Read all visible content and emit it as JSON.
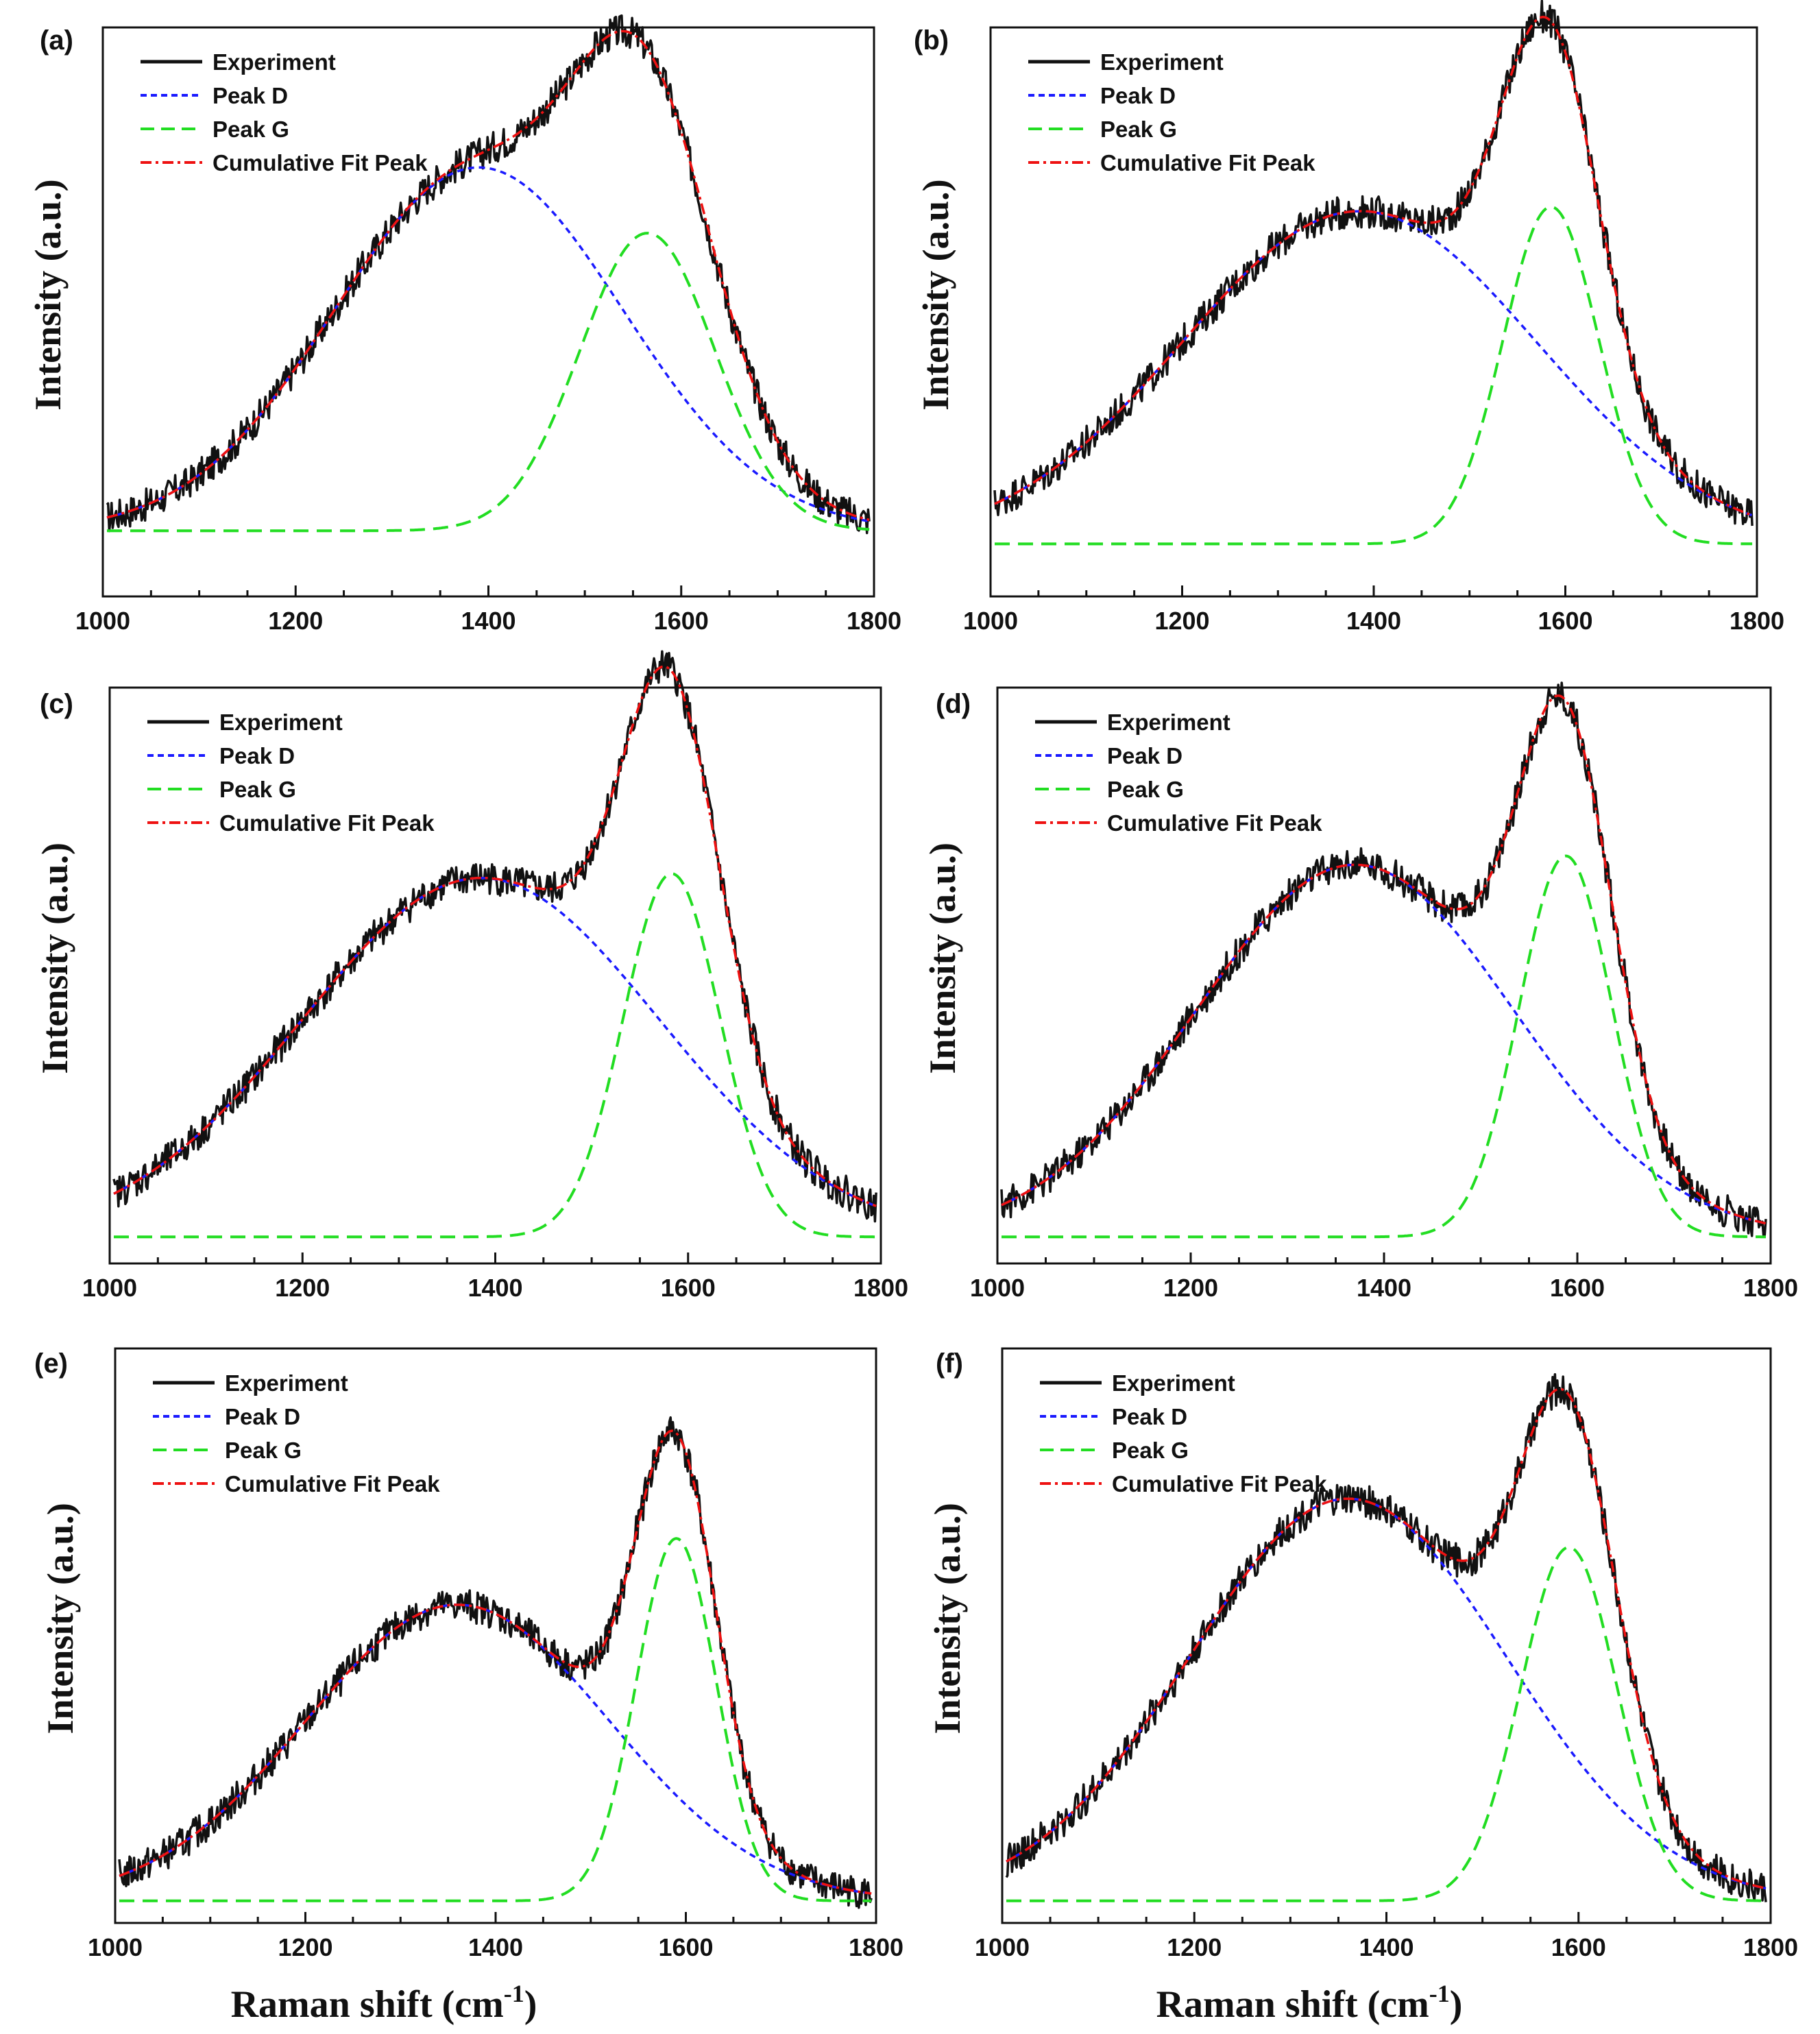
{
  "figure": {
    "xlabel_main": "Raman shift (cm",
    "xlabel_sup": "-1",
    "xlabel_close": ")"
  },
  "chart_data": [
    {
      "panel": "(a)",
      "type": "line",
      "xlabel": "",
      "ylabel": "Intensity (a.u.)",
      "xlim": [
        1000,
        1800
      ],
      "ylim": [
        0,
        1.3
      ],
      "xticks": [
        "1000",
        "1200",
        "1400",
        "1600",
        "1800"
      ],
      "legend": [
        "Experiment",
        "Peak D",
        "Peak G",
        "Cumulative Fit Peak"
      ],
      "components": {
        "D": {
          "center": 1390,
          "height": 0.98,
          "width": 150
        },
        "G": {
          "center": 1565,
          "height": 0.83,
          "width": 70
        }
      },
      "baseline": 0.15
    },
    {
      "panel": "(b)",
      "type": "line",
      "xlabel": "",
      "ylabel": "Intensity (a.u.)",
      "xlim": [
        1000,
        1800
      ],
      "ylim": [
        0,
        1.3
      ],
      "xticks": [
        "1000",
        "1200",
        "1400",
        "1600",
        "1800"
      ],
      "legend": [
        "Experiment",
        "Peak D",
        "Peak G",
        "Cumulative Fit Peak"
      ],
      "components": {
        "D": {
          "center": 1385,
          "height": 0.88,
          "width": 185
        },
        "G": {
          "center": 1585,
          "height": 0.89,
          "width": 50
        }
      },
      "baseline": 0.12
    },
    {
      "panel": "(c)",
      "type": "line",
      "xlabel": "",
      "ylabel": "Intensity (a.u.)",
      "xlim": [
        1000,
        1800
      ],
      "ylim": [
        0,
        1.3
      ],
      "xticks": [
        "1000",
        "1200",
        "1400",
        "1600",
        "1800"
      ],
      "legend": [
        "Experiment",
        "Peak D",
        "Peak G",
        "Cumulative Fit Peak"
      ],
      "components": {
        "D": {
          "center": 1385,
          "height": 0.87,
          "width": 185
        },
        "G": {
          "center": 1583,
          "height": 0.88,
          "width": 50
        }
      },
      "baseline": 0.06
    },
    {
      "panel": "(d)",
      "type": "line",
      "xlabel": "",
      "ylabel": "Intensity (a.u.)",
      "xlim": [
        1000,
        1800
      ],
      "ylim": [
        0,
        1.3
      ],
      "xticks": [
        "1000",
        "1200",
        "1400",
        "1600",
        "1800"
      ],
      "legend": [
        "Experiment",
        "Peak D",
        "Peak G",
        "Cumulative Fit Peak"
      ],
      "components": {
        "D": {
          "center": 1370,
          "height": 0.9,
          "width": 165
        },
        "G": {
          "center": 1588,
          "height": 0.92,
          "width": 48
        }
      },
      "baseline": 0.06
    },
    {
      "panel": "(e)",
      "type": "line",
      "xlabel": "",
      "ylabel": "Intensity (a.u.)",
      "xlim": [
        1000,
        1800
      ],
      "ylim": [
        0,
        1.3
      ],
      "xticks": [
        "1000",
        "1200",
        "1400",
        "1600",
        "1800"
      ],
      "legend": [
        "Experiment",
        "Peak D",
        "Peak G",
        "Cumulative Fit Peak"
      ],
      "components": {
        "D": {
          "center": 1360,
          "height": 0.72,
          "width": 160
        },
        "G": {
          "center": 1590,
          "height": 0.87,
          "width": 42
        }
      },
      "baseline": 0.05
    },
    {
      "panel": "(f)",
      "type": "line",
      "xlabel": "",
      "ylabel": "Intensity (a.u.)",
      "xlim": [
        1000,
        1800
      ],
      "ylim": [
        0,
        1.3
      ],
      "xticks": [
        "1000",
        "1200",
        "1400",
        "1600",
        "1800"
      ],
      "legend": [
        "Experiment",
        "Peak D",
        "Peak G",
        "Cumulative Fit Peak"
      ],
      "components": {
        "D": {
          "center": 1360,
          "height": 0.96,
          "width": 165
        },
        "G": {
          "center": 1590,
          "height": 0.85,
          "width": 50
        }
      },
      "baseline": 0.05
    }
  ],
  "colors": {
    "experiment": "#111111",
    "peak_d": "#1a1aff",
    "peak_g": "#22dd22",
    "fit": "#ee1111"
  }
}
